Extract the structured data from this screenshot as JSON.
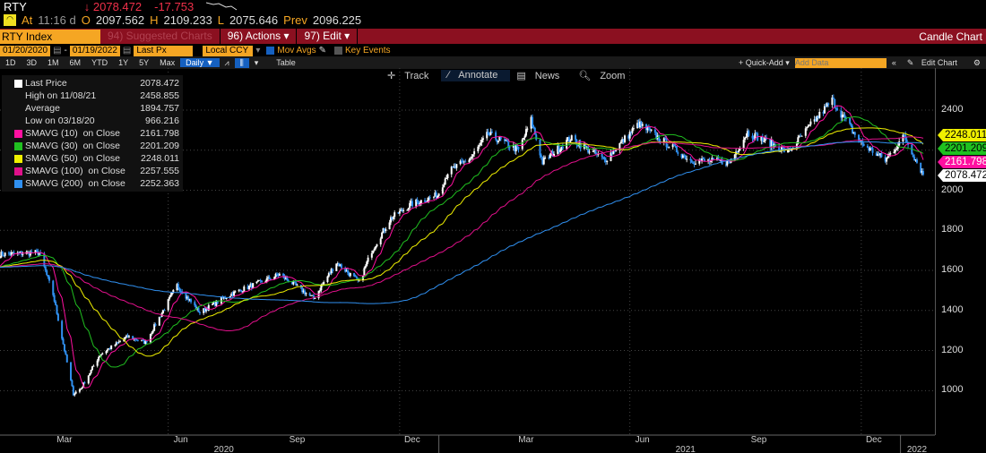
{
  "header": {
    "ticker": "RTY",
    "last": "↓ 2078.472",
    "change": "-17.753",
    "at_label": "At",
    "time": "11:16 d",
    "o_label": "O",
    "open": "2097.562",
    "h_label": "H",
    "high": "2109.233",
    "l_label": "L",
    "low": "2075.646",
    "prev_label": "Prev",
    "prev": "2096.225"
  },
  "toolbar": {
    "security": "RTY Index",
    "suggested": "94) Suggested Charts",
    "actions": "96) Actions ▾",
    "edit": "97) Edit ▾",
    "chart_type": "Candle Chart",
    "start_date": "01/20/2020",
    "end_date": "01/19/2022",
    "field": "Last Px",
    "currency": "Local CCY",
    "mov_avgs": "Mov Avgs",
    "key_events": "Key Events",
    "periods": [
      "1D",
      "3D",
      "1M",
      "6M",
      "YTD",
      "1Y",
      "5Y",
      "Max"
    ],
    "frequency": "Daily ▼",
    "table": "Table",
    "quick_add": "+ Quick-Add ▾",
    "add_data_placeholder": "Add Data",
    "edit_chart": "Edit Chart",
    "track": "Track",
    "annotate": "Annotate",
    "news": "News",
    "zoom": "Zoom"
  },
  "legend": [
    {
      "label": "Last Price",
      "value": "2078.472",
      "color": "#ffffff"
    },
    {
      "label": "High on 11/08/21",
      "value": "2458.855"
    },
    {
      "label": "Average",
      "value": "1894.757"
    },
    {
      "label": "Low on 03/18/20",
      "value": "966.216"
    },
    {
      "label": "SMAVG (10)  on Close",
      "value": "2161.798",
      "color": "#ff10a0"
    },
    {
      "label": "SMAVG (30)  on Close",
      "value": "2201.209",
      "color": "#20c020"
    },
    {
      "label": "SMAVG (50)  on Close",
      "value": "2248.011",
      "color": "#f0f000"
    },
    {
      "label": "SMAVG (100)  on Close",
      "value": "2257.555",
      "color": "#e0108a"
    },
    {
      "label": "SMAVG (200)  on Close",
      "value": "2252.363",
      "color": "#3090f0"
    }
  ],
  "chart_data": {
    "type": "candlestick",
    "ylim": [
      820,
      2540
    ],
    "yticks": [
      1000,
      1200,
      1400,
      1600,
      1800,
      2000,
      2200,
      2400
    ],
    "xticks": [
      "Mar",
      "Jun",
      "Sep",
      "Dec",
      "Mar",
      "Jun",
      "Sep",
      "Dec"
    ],
    "years": [
      "2020",
      "2021",
      "2022"
    ],
    "close_anchors": [
      [
        "2020-01-20",
        1680
      ],
      [
        "2020-02-20",
        1690
      ],
      [
        "2020-03-02",
        1480
      ],
      [
        "2020-03-18",
        985
      ],
      [
        "2020-03-24",
        1010
      ],
      [
        "2020-04-08",
        1180
      ],
      [
        "2020-04-30",
        1270
      ],
      [
        "2020-05-14",
        1240
      ],
      [
        "2020-06-08",
        1525
      ],
      [
        "2020-06-26",
        1390
      ],
      [
        "2020-07-20",
        1480
      ],
      [
        "2020-08-28",
        1580
      ],
      [
        "2020-09-24",
        1460
      ],
      [
        "2020-10-12",
        1640
      ],
      [
        "2020-10-30",
        1540
      ],
      [
        "2020-11-09",
        1700
      ],
      [
        "2020-11-24",
        1860
      ],
      [
        "2020-12-10",
        1930
      ],
      [
        "2020-12-31",
        1975
      ],
      [
        "2021-01-08",
        2090
      ],
      [
        "2021-01-26",
        2160
      ],
      [
        "2021-02-09",
        2280
      ],
      [
        "2021-03-05",
        2200
      ],
      [
        "2021-03-15",
        2350
      ],
      [
        "2021-03-24",
        2140
      ],
      [
        "2021-04-15",
        2260
      ],
      [
        "2021-05-12",
        2150
      ],
      [
        "2021-06-08",
        2330
      ],
      [
        "2021-07-19",
        2150
      ],
      [
        "2021-08-19",
        2140
      ],
      [
        "2021-09-02",
        2290
      ],
      [
        "2021-10-04",
        2190
      ],
      [
        "2021-11-08",
        2450
      ],
      [
        "2021-11-30",
        2240
      ],
      [
        "2021-12-20",
        2150
      ],
      [
        "2022-01-04",
        2270
      ],
      [
        "2022-01-19",
        2078
      ]
    ],
    "axis_tags": [
      {
        "value": "2248.011",
        "color": "#f0f000"
      },
      {
        "value": "2201.209",
        "color": "#20c020"
      },
      {
        "value": "2161.798",
        "color": "#ff10a0"
      },
      {
        "value": "2078.472",
        "color": "#ffffff"
      }
    ]
  }
}
